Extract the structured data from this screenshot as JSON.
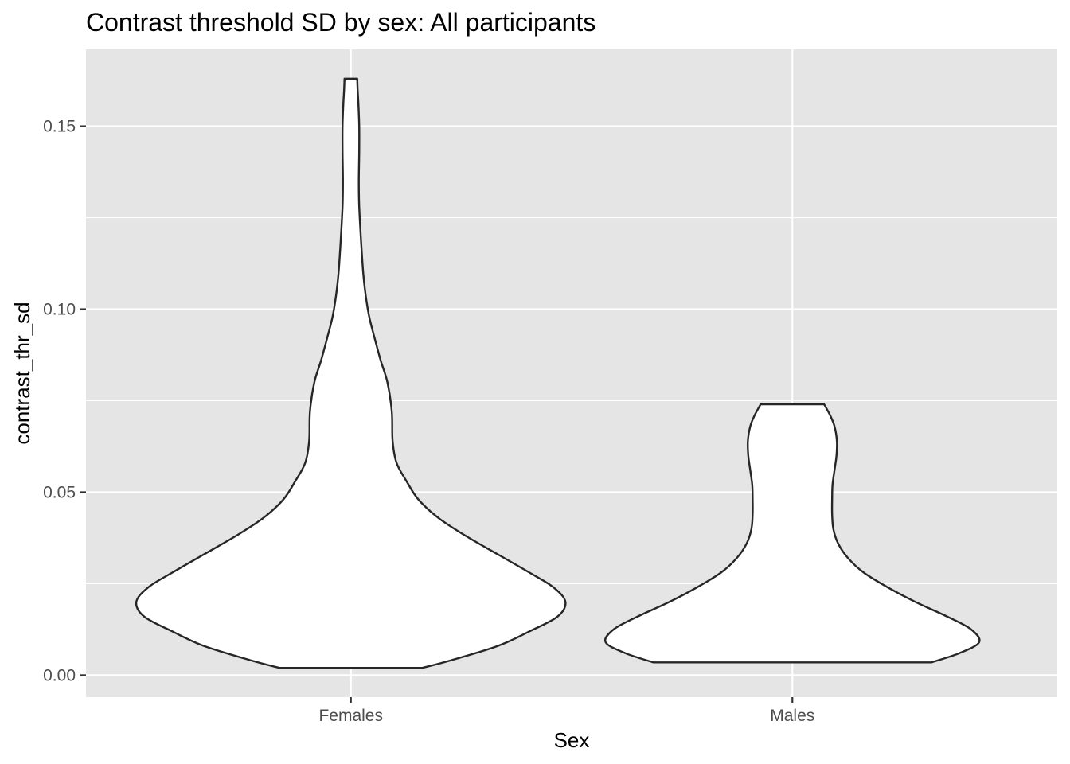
{
  "chart_data": {
    "type": "violin",
    "title": "Contrast threshold SD by sex: All participants",
    "xlabel": "Sex",
    "ylabel": "contrast_thr_sd",
    "categories": [
      "Females",
      "Males"
    ],
    "ylim": [
      -0.006,
      0.171
    ],
    "yticks": [
      0.0,
      0.05,
      0.1,
      0.15
    ],
    "ytick_labels": [
      "0.00",
      "0.05",
      "0.10",
      "0.15"
    ],
    "grid": true,
    "colors": {
      "panel": "#e5e5e5",
      "fill": "#ffffff",
      "outline": "#262626"
    },
    "series": [
      {
        "category": "Females",
        "min": 0.002,
        "max": 0.163,
        "profile": [
          [
            0.002,
            0.18
          ],
          [
            0.004,
            0.25
          ],
          [
            0.008,
            0.37
          ],
          [
            0.012,
            0.45
          ],
          [
            0.016,
            0.52
          ],
          [
            0.02,
            0.54
          ],
          [
            0.024,
            0.51
          ],
          [
            0.028,
            0.45
          ],
          [
            0.033,
            0.37
          ],
          [
            0.038,
            0.29
          ],
          [
            0.043,
            0.22
          ],
          [
            0.048,
            0.17
          ],
          [
            0.053,
            0.14
          ],
          [
            0.058,
            0.115
          ],
          [
            0.064,
            0.105
          ],
          [
            0.072,
            0.103
          ],
          [
            0.08,
            0.092
          ],
          [
            0.086,
            0.075
          ],
          [
            0.092,
            0.06
          ],
          [
            0.098,
            0.046
          ],
          [
            0.104,
            0.037
          ],
          [
            0.11,
            0.031
          ],
          [
            0.118,
            0.026
          ],
          [
            0.128,
            0.021
          ],
          [
            0.135,
            0.02
          ],
          [
            0.143,
            0.021
          ],
          [
            0.15,
            0.021
          ],
          [
            0.156,
            0.019
          ],
          [
            0.16,
            0.017
          ],
          [
            0.163,
            0.016
          ]
        ]
      },
      {
        "category": "Males",
        "min": 0.0035,
        "max": 0.074,
        "profile": [
          [
            0.0035,
            0.35
          ],
          [
            0.006,
            0.42
          ],
          [
            0.009,
            0.47
          ],
          [
            0.0125,
            0.45
          ],
          [
            0.016,
            0.39
          ],
          [
            0.02,
            0.31
          ],
          [
            0.024,
            0.24
          ],
          [
            0.028,
            0.18
          ],
          [
            0.032,
            0.14
          ],
          [
            0.036,
            0.115
          ],
          [
            0.04,
            0.103
          ],
          [
            0.044,
            0.1
          ],
          [
            0.048,
            0.1
          ],
          [
            0.052,
            0.101
          ],
          [
            0.056,
            0.106
          ],
          [
            0.06,
            0.111
          ],
          [
            0.064,
            0.112
          ],
          [
            0.068,
            0.106
          ],
          [
            0.071,
            0.095
          ],
          [
            0.074,
            0.08
          ]
        ]
      }
    ]
  }
}
